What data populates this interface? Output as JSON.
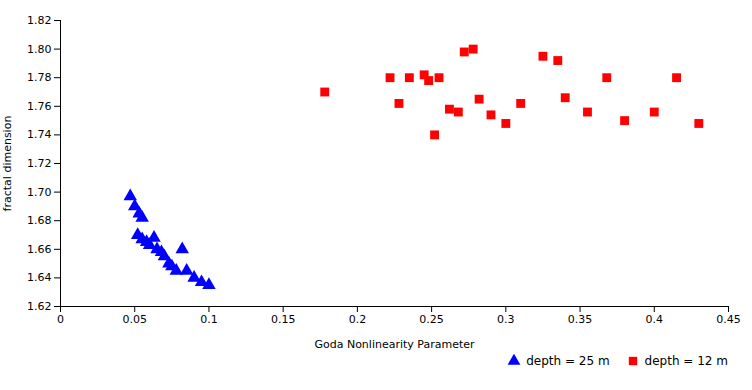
{
  "chart_data": {
    "type": "scatter",
    "xlabel": "Goda Nonlinearity Parameter",
    "ylabel": "fractal dimension",
    "xlim": [
      0,
      0.45
    ],
    "ylim": [
      1.62,
      1.82
    ],
    "xticks": [
      0,
      0.05,
      0.1,
      0.15,
      0.2,
      0.25,
      0.3,
      0.35,
      0.4,
      0.45
    ],
    "yticks": [
      1.62,
      1.64,
      1.66,
      1.68,
      {
        "value": 1.7,
        "label": "1.70"
      },
      1.72,
      1.74,
      1.76,
      1.78,
      {
        "value": 1.8,
        "label": "1.80"
      },
      1.82
    ],
    "grid": false,
    "legend": "lower right",
    "series": [
      {
        "name": "depth = 25 m",
        "color": "#0000FF",
        "marker": "triangle",
        "x": [
          0.047,
          0.05,
          0.053,
          0.055,
          0.052,
          0.055,
          0.058,
          0.06,
          0.063,
          0.065,
          0.068,
          0.07,
          0.073,
          0.075,
          0.078,
          0.082,
          0.085,
          0.09,
          0.095,
          0.1
        ],
        "values": [
          1.697,
          1.69,
          1.685,
          1.682,
          1.67,
          1.667,
          1.665,
          1.663,
          1.668,
          1.66,
          1.658,
          1.655,
          1.65,
          1.648,
          1.645,
          1.66,
          1.645,
          1.64,
          1.637,
          1.635
        ]
      },
      {
        "name": "depth = 12 m",
        "color": "#FF0000",
        "marker": "square",
        "x": [
          0.178,
          0.222,
          0.228,
          0.235,
          0.245,
          0.248,
          0.252,
          0.255,
          0.262,
          0.268,
          0.272,
          0.278,
          0.282,
          0.29,
          0.3,
          0.31,
          0.325,
          0.335,
          0.34,
          0.355,
          0.368,
          0.38,
          0.4,
          0.415,
          0.43
        ],
        "values": [
          1.77,
          1.78,
          1.762,
          1.78,
          1.782,
          1.778,
          1.74,
          1.78,
          1.758,
          1.756,
          1.798,
          1.8,
          1.765,
          1.754,
          1.748,
          1.762,
          1.795,
          1.792,
          1.766,
          1.756,
          1.78,
          1.75,
          1.756,
          1.78,
          1.748
        ]
      }
    ]
  }
}
